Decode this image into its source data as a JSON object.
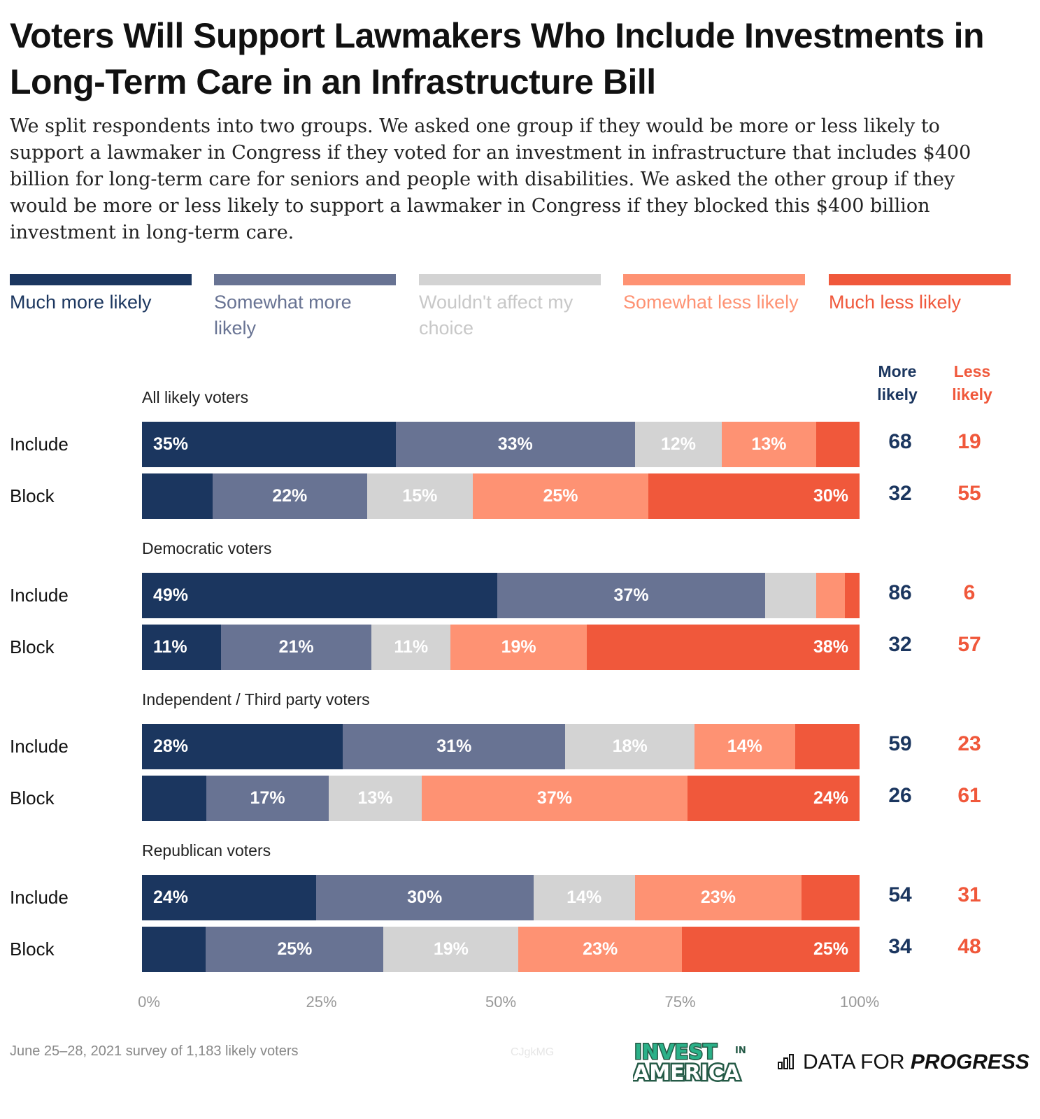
{
  "title": "Voters Will Support Lawmakers Who Include Investments in Long-Term Care in an Infrastructure Bill",
  "subtitle": "We split respondents into two groups. We asked one group if they would be more or less likely to support a lawmaker in Congress if they voted for an investment in infrastructure that includes $400 billion for long-term care for seniors and people with disabilities. We asked the other group if they would be more or less likely to support a lawmaker in Congress if they blocked this $400 billion investment in long-term care.",
  "footer": "June 25–28, 2021 survey of 1,183 likely voters",
  "watermark": "CJgkMG",
  "logos": {
    "invest": "INVEST IN AMERICA",
    "dfp_a": "DATA FOR ",
    "dfp_b": "PROGRESS"
  },
  "chart_data": {
    "type": "stacked-bar-horizontal",
    "series": [
      {
        "name": "Much more likely",
        "color": "#1b365f"
      },
      {
        "name": "Somewhat more likely",
        "color": "#687393"
      },
      {
        "name": "Wouldn't affect my choice",
        "color": "#d3d3d3"
      },
      {
        "name": "Somewhat less likely",
        "color": "#fe9273"
      },
      {
        "name": "Much less likely",
        "color": "#f0583b"
      }
    ],
    "totals_headers": {
      "more": "More likely",
      "less": "Less likely"
    },
    "groups": [
      {
        "label": "All likely voters",
        "rows": [
          {
            "label": "Include",
            "values": [
              35,
              33,
              12,
              13,
              6
            ],
            "more": "68",
            "less": "19"
          },
          {
            "label": "Block",
            "values": [
              10,
              22,
              15,
              25,
              30
            ],
            "more": "32",
            "less": "55"
          }
        ]
      },
      {
        "label": "Democratic voters",
        "rows": [
          {
            "label": "Include",
            "values": [
              49,
              37,
              7,
              4,
              2
            ],
            "more": "86",
            "less": "6"
          },
          {
            "label": "Block",
            "values": [
              11,
              21,
              11,
              19,
              38
            ],
            "more": "32",
            "less": "57"
          }
        ]
      },
      {
        "label": "Independent / Third party voters",
        "rows": [
          {
            "label": "Include",
            "values": [
              28,
              31,
              18,
              14,
              9
            ],
            "more": "59",
            "less": "23"
          },
          {
            "label": "Block",
            "values": [
              9,
              17,
              13,
              37,
              24
            ],
            "more": "26",
            "less": "61"
          }
        ]
      },
      {
        "label": "Republican voters",
        "rows": [
          {
            "label": "Include",
            "values": [
              24,
              30,
              14,
              23,
              8
            ],
            "more": "54",
            "less": "31"
          },
          {
            "label": "Block",
            "values": [
              9,
              25,
              19,
              23,
              25
            ],
            "more": "34",
            "less": "48"
          }
        ]
      }
    ],
    "x_ticks": [
      "0%",
      "25%",
      "50%",
      "75%",
      "100%"
    ],
    "xlim": [
      0,
      100
    ]
  }
}
